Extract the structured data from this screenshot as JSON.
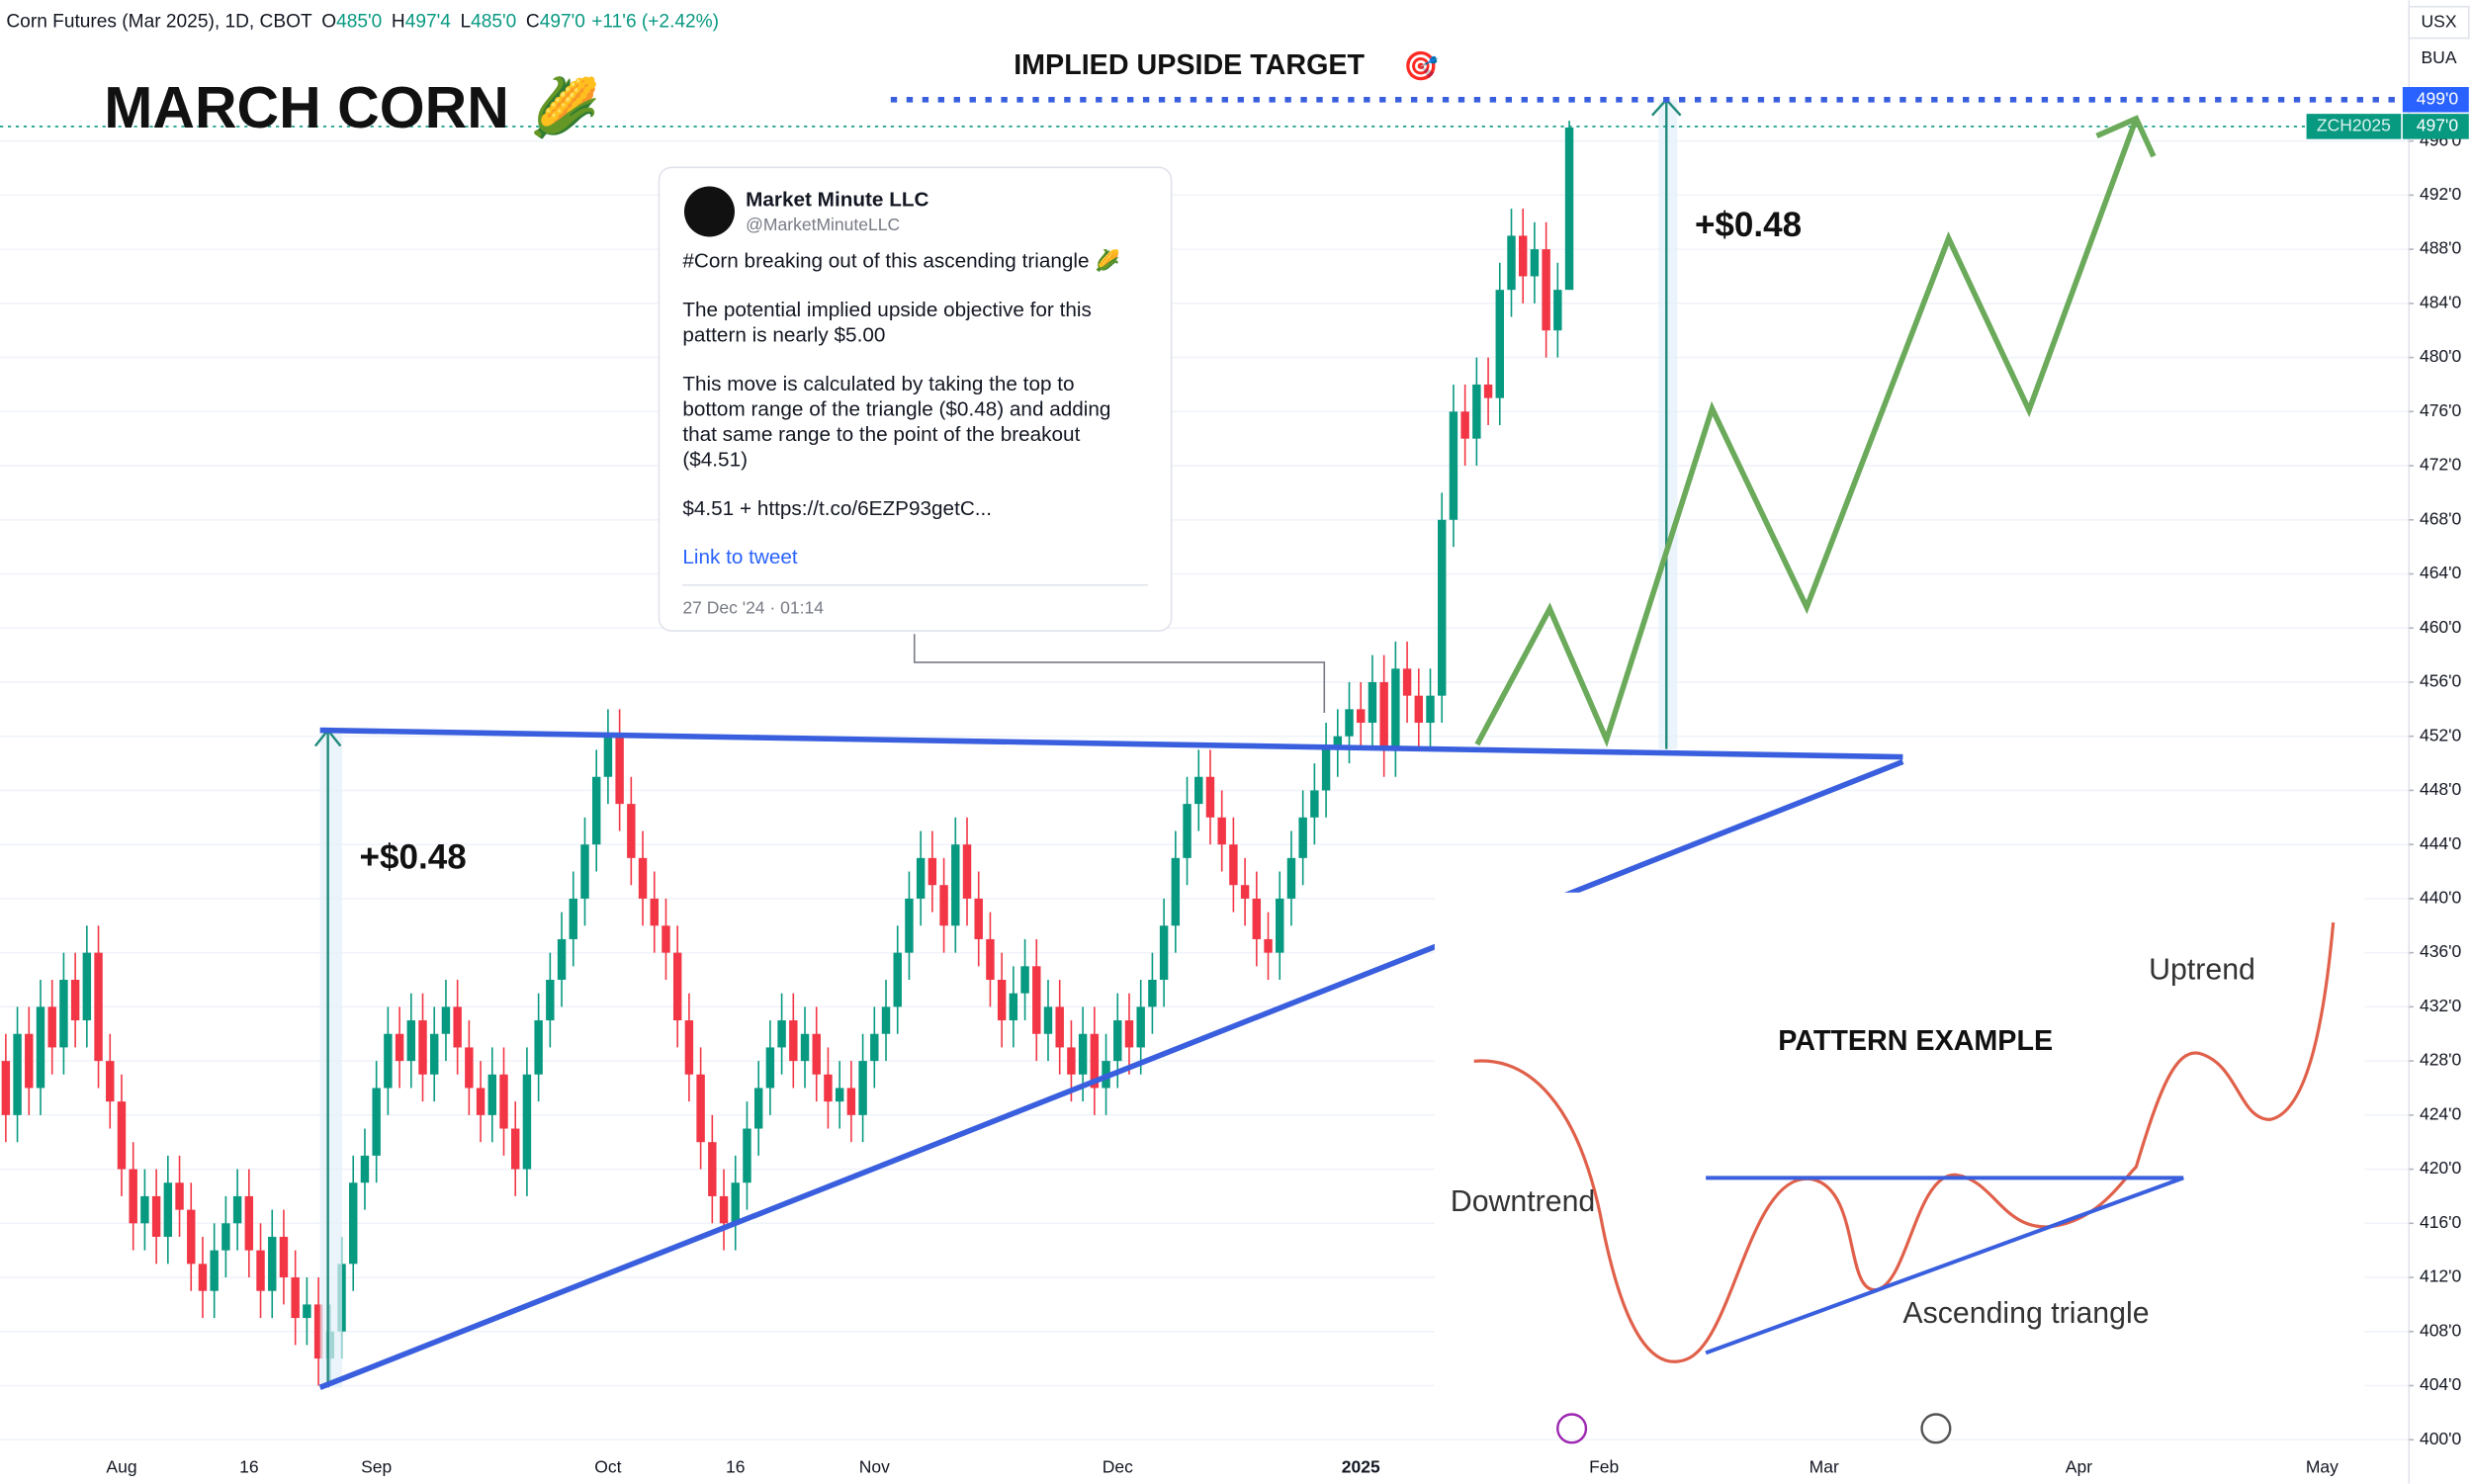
{
  "chart_data": {
    "type": "candlestick",
    "header": {
      "symbol": "Corn Futures (Mar 2025), 1D, CBOT",
      "o_key": "O",
      "o": "485'0",
      "h_key": "H",
      "h": "497'4",
      "l_key": "L",
      "l": "485'0",
      "c_key": "C",
      "c": "497'0",
      "change": "+11'6 (+2.42%)"
    },
    "title": "MARCH CORN",
    "title_emoji": "🌽",
    "target_label": "IMPLIED UPSIDE TARGET",
    "target_emoji": "🎯",
    "range_labels": [
      "+$0.48",
      "+$0.48"
    ],
    "price_labels": {
      "target": "499'0",
      "symbol": "ZCH2025",
      "last": "497'0",
      "currency": "USX",
      "unit": "BUA"
    },
    "tweet": {
      "author": "Market Minute LLC",
      "handle": "@MarketMinuteLLC",
      "lines": [
        "#Corn breaking out of this ascending triangle 🌽",
        "The potential implied upside objective for this",
        "pattern is nearly $5.00",
        "This move is calculated by taking the top to",
        "bottom range of the triangle ($0.48) and adding",
        "that same range to the point of the breakout",
        "($4.51)",
        "$4.51 + https://t.co/6EZP93getC..."
      ],
      "link": "Link to tweet",
      "date": "27 Dec '24 · 01:14"
    },
    "pattern": {
      "title": "PATTERN EXAMPLE",
      "downtrend": "Downtrend",
      "uptrend": "Uptrend",
      "triangle": "Ascending triangle"
    },
    "up_color": "#089981",
    "down_color": "#f23645",
    "grid": true,
    "ylim": [
      399.2,
      506.4
    ],
    "yticks": [
      {
        "value": 400,
        "label": "400'0"
      },
      {
        "value": 404,
        "label": "404'0"
      },
      {
        "value": 408,
        "label": "408'0"
      },
      {
        "value": 412,
        "label": "412'0"
      },
      {
        "value": 416,
        "label": "416'0"
      },
      {
        "value": 420,
        "label": "420'0"
      },
      {
        "value": 424,
        "label": "424'0"
      },
      {
        "value": 428,
        "label": "428'0"
      },
      {
        "value": 432,
        "label": "432'0"
      },
      {
        "value": 436,
        "label": "436'0"
      },
      {
        "value": 440,
        "label": "440'0"
      },
      {
        "value": 444,
        "label": "444'0"
      },
      {
        "value": 448,
        "label": "448'0"
      },
      {
        "value": 452,
        "label": "452'0"
      },
      {
        "value": 456,
        "label": "456'0"
      },
      {
        "value": 460,
        "label": "460'0"
      },
      {
        "value": 464,
        "label": "464'0"
      },
      {
        "value": 468,
        "label": "468'0"
      },
      {
        "value": 472,
        "label": "472'0"
      },
      {
        "value": 476,
        "label": "476'0"
      },
      {
        "value": 480,
        "label": "480'0"
      },
      {
        "value": 484,
        "label": "484'0"
      },
      {
        "value": 488,
        "label": "488'0"
      },
      {
        "value": 492,
        "label": "492'0"
      },
      {
        "value": 496,
        "label": "496'0"
      }
    ],
    "categories": [
      null,
      null,
      null,
      null,
      null,
      null,
      null,
      null,
      null,
      null,
      "Aug",
      null,
      null,
      null,
      null,
      null,
      null,
      null,
      null,
      null,
      null,
      "16",
      null,
      null,
      null,
      null,
      null,
      null,
      null,
      null,
      null,
      null,
      "Sep",
      null,
      null,
      null,
      null,
      null,
      null,
      null,
      null,
      null,
      null,
      null,
      null,
      null,
      null,
      null,
      null,
      null,
      null,
      null,
      "Oct",
      null,
      null,
      null,
      null,
      null,
      null,
      null,
      null,
      null,
      null,
      "16",
      null,
      null,
      null,
      null,
      null,
      null,
      null,
      null,
      null,
      null,
      null,
      "Nov",
      null,
      null,
      null,
      null,
      null,
      null,
      null,
      null,
      null,
      null,
      null,
      null,
      null,
      null,
      null,
      null,
      null,
      null,
      null,
      null,
      "Dec",
      null,
      null,
      null,
      null,
      null,
      null,
      null,
      null,
      null,
      null,
      null,
      null,
      null,
      null,
      null,
      null,
      null,
      null,
      null,
      null,
      "2025",
      null,
      null,
      null,
      null,
      null,
      null,
      null,
      null,
      null,
      null,
      null,
      null,
      null,
      null,
      null,
      null,
      null,
      null,
      null,
      null,
      "Feb",
      null,
      null,
      null,
      null,
      null,
      null,
      null,
      null,
      null,
      null,
      null,
      null,
      null,
      null,
      null,
      null,
      null,
      null,
      "Mar",
      null,
      null,
      null,
      null,
      null,
      null,
      null,
      null,
      null,
      null,
      null,
      null,
      null,
      null,
      null,
      null,
      null,
      null,
      null,
      null,
      null,
      "Apr",
      null,
      null,
      null,
      null,
      null,
      null,
      null,
      null,
      null,
      null,
      null,
      null,
      null,
      null,
      null,
      null,
      null,
      null,
      null,
      null,
      "May",
      null,
      null,
      null,
      null,
      null,
      null,
      null
    ],
    "open": [
      428,
      424,
      430,
      426,
      432,
      429,
      434,
      431,
      436,
      428,
      425,
      420,
      416,
      418,
      415,
      419,
      417,
      413,
      411,
      414,
      416,
      418,
      414,
      411,
      415,
      412,
      409,
      410,
      406,
      408,
      413,
      419,
      421,
      426,
      430,
      428,
      431,
      427,
      430,
      432,
      429,
      426,
      424,
      427,
      423,
      420,
      427,
      431,
      434,
      437,
      440,
      444,
      449,
      452,
      447,
      443,
      440,
      438,
      436,
      431,
      427,
      422,
      418,
      416,
      419,
      423,
      426,
      429,
      431,
      428,
      430,
      427,
      425,
      426,
      424,
      428,
      430,
      432,
      436,
      440,
      443,
      441,
      438,
      444,
      440,
      437,
      434,
      431,
      433,
      435,
      430,
      432,
      429,
      427,
      430,
      426,
      428,
      431,
      429,
      432,
      434,
      438,
      443,
      447,
      449,
      446,
      444,
      441,
      440,
      437,
      436,
      440,
      443,
      446,
      448,
      451,
      452,
      454,
      453,
      456,
      451,
      457,
      455,
      453,
      455,
      468,
      476,
      474,
      478,
      477,
      485,
      489,
      486,
      488,
      482,
      485,
      null,
      null,
      null,
      null,
      null,
      null,
      null,
      null,
      null,
      null,
      null,
      null,
      null,
      null,
      null,
      null,
      null,
      null,
      null,
      null,
      null,
      null,
      null,
      null,
      null,
      null,
      null,
      null,
      null,
      null,
      null,
      null,
      null,
      null,
      null,
      null,
      null,
      null,
      null,
      null,
      null,
      null,
      null,
      null,
      null,
      null,
      null,
      null,
      null,
      null,
      null,
      null,
      null,
      null,
      null,
      null,
      null,
      null,
      null,
      null,
      null,
      null,
      null,
      null,
      null,
      null,
      null,
      null,
      null,
      null,
      null,
      null
    ],
    "high": [
      430,
      432,
      432,
      434,
      434,
      436,
      436,
      438,
      438,
      430,
      427,
      422,
      420,
      420,
      421,
      421,
      419,
      415,
      416,
      418,
      420,
      420,
      416,
      417,
      417,
      414,
      412,
      412,
      410,
      415,
      421,
      423,
      428,
      432,
      432,
      433,
      433,
      432,
      434,
      434,
      431,
      428,
      429,
      429,
      425,
      429,
      433,
      436,
      439,
      442,
      446,
      451,
      454,
      454,
      449,
      445,
      442,
      440,
      438,
      433,
      429,
      424,
      420,
      421,
      425,
      428,
      431,
      433,
      433,
      432,
      432,
      429,
      428,
      428,
      430,
      432,
      434,
      438,
      442,
      445,
      445,
      443,
      446,
      446,
      442,
      439,
      436,
      435,
      437,
      437,
      434,
      434,
      431,
      432,
      432,
      430,
      433,
      433,
      434,
      436,
      440,
      445,
      449,
      451,
      451,
      448,
      446,
      443,
      442,
      439,
      442,
      445,
      448,
      450,
      453,
      454,
      456,
      456,
      458,
      458,
      459,
      459,
      457,
      457,
      470,
      478,
      478,
      480,
      480,
      487,
      491,
      491,
      490,
      490,
      487,
      497.5,
      null,
      null,
      null,
      null,
      null,
      null,
      null,
      null,
      null,
      null,
      null,
      null,
      null,
      null,
      null,
      null,
      null,
      null,
      null,
      null,
      null,
      null,
      null,
      null,
      null,
      null,
      null,
      null,
      null,
      null,
      null,
      null,
      null,
      null,
      null,
      null,
      null,
      null,
      null,
      null,
      null,
      null,
      null,
      null,
      null,
      null,
      null,
      null,
      null,
      null,
      null,
      null,
      null,
      null,
      null,
      null,
      null,
      null,
      null,
      null,
      null,
      null,
      null,
      null,
      null,
      null,
      null,
      null,
      null,
      null,
      null,
      null
    ],
    "low": [
      422,
      422,
      424,
      424,
      427,
      427,
      429,
      429,
      426,
      423,
      418,
      414,
      414,
      413,
      413,
      415,
      411,
      409,
      409,
      412,
      414,
      412,
      409,
      409,
      410,
      407,
      407,
      404,
      404,
      406,
      411,
      417,
      419,
      424,
      426,
      426,
      425,
      425,
      428,
      427,
      424,
      422,
      422,
      421,
      418,
      418,
      425,
      429,
      432,
      435,
      438,
      442,
      447,
      445,
      441,
      438,
      436,
      434,
      429,
      425,
      420,
      416,
      414,
      414,
      417,
      421,
      424,
      427,
      426,
      426,
      425,
      423,
      423,
      422,
      422,
      426,
      428,
      430,
      434,
      438,
      439,
      436,
      436,
      438,
      435,
      432,
      429,
      429,
      431,
      428,
      428,
      427,
      425,
      425,
      424,
      424,
      426,
      427,
      427,
      430,
      432,
      436,
      441,
      445,
      444,
      442,
      439,
      438,
      435,
      434,
      434,
      438,
      441,
      444,
      446,
      449,
      450,
      451,
      451,
      449,
      449,
      453,
      451,
      451,
      453,
      466,
      472,
      472,
      475,
      475,
      483,
      484,
      484,
      480,
      480,
      485,
      null,
      null,
      null,
      null,
      null,
      null,
      null,
      null,
      null,
      null,
      null,
      null,
      null,
      null,
      null,
      null,
      null,
      null,
      null,
      null,
      null,
      null,
      null,
      null,
      null,
      null,
      null,
      null,
      null,
      null,
      null,
      null,
      null,
      null,
      null,
      null,
      null,
      null,
      null,
      null,
      null,
      null,
      null,
      null,
      null,
      null,
      null,
      null,
      null,
      null,
      null,
      null,
      null,
      null,
      null,
      null,
      null,
      null,
      null,
      null,
      null,
      null,
      null,
      null,
      null,
      null,
      null,
      null,
      null,
      null,
      null,
      null
    ],
    "close": [
      424,
      430,
      426,
      432,
      429,
      434,
      431,
      436,
      428,
      425,
      420,
      416,
      418,
      415,
      419,
      417,
      413,
      411,
      414,
      416,
      418,
      414,
      411,
      415,
      412,
      409,
      410,
      406,
      408,
      413,
      419,
      421,
      426,
      430,
      428,
      431,
      427,
      430,
      432,
      429,
      426,
      424,
      427,
      423,
      420,
      427,
      431,
      434,
      437,
      440,
      444,
      449,
      452,
      447,
      443,
      440,
      438,
      436,
      431,
      427,
      422,
      418,
      416,
      419,
      423,
      426,
      429,
      431,
      428,
      430,
      427,
      425,
      426,
      424,
      428,
      430,
      432,
      436,
      440,
      443,
      441,
      438,
      444,
      440,
      437,
      434,
      431,
      433,
      435,
      430,
      432,
      429,
      427,
      430,
      426,
      428,
      431,
      429,
      432,
      434,
      438,
      443,
      447,
      449,
      446,
      444,
      441,
      440,
      437,
      436,
      440,
      443,
      446,
      448,
      451,
      452,
      454,
      453,
      456,
      451,
      457,
      455,
      453,
      455,
      468,
      476,
      474,
      478,
      477,
      485,
      489,
      486,
      488,
      482,
      485,
      497,
      null,
      null,
      null,
      null,
      null,
      null,
      null,
      null,
      null,
      null,
      null,
      null,
      null,
      null,
      null,
      null,
      null,
      null,
      null,
      null,
      null,
      null,
      null,
      null,
      null,
      null,
      null,
      null,
      null,
      null,
      null,
      null,
      null,
      null,
      null,
      null,
      null,
      null,
      null,
      null,
      null,
      null,
      null,
      null,
      null,
      null,
      null,
      null,
      null,
      null,
      null,
      null,
      null,
      null,
      null,
      null,
      null,
      null,
      null,
      null,
      null,
      null,
      null,
      null,
      null,
      null,
      null,
      null,
      null,
      null,
      null,
      null
    ]
  }
}
